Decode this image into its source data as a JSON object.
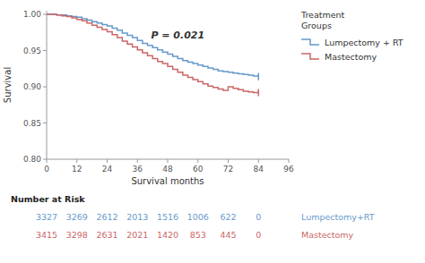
{
  "chart_data": {
    "type": "step",
    "xlabel": "Survival months",
    "ylabel": "Survival",
    "xlim": [
      0,
      96
    ],
    "ylim": [
      0.8,
      1.005
    ],
    "xticks": [
      0,
      12,
      24,
      36,
      48,
      60,
      72,
      84,
      96
    ],
    "yticks": [
      {
        "value": 0.8,
        "label": "0.80"
      },
      {
        "value": 0.85,
        "label": "0.85"
      },
      {
        "value": 0.9,
        "label": "0.90"
      },
      {
        "value": 0.95,
        "label": "0.95"
      },
      {
        "value": 1.0,
        "label": "1.00"
      }
    ],
    "annotations": [
      {
        "text": "P = 0.021",
        "x": 52,
        "y": 0.972
      }
    ],
    "legend": "right",
    "legend_title": "Treatment\nGroups",
    "series": [
      {
        "name": "Lumpectomy + RT",
        "color": "#6699cc",
        "x": [
          0,
          2,
          4,
          6,
          8,
          10,
          12,
          14,
          16,
          18,
          20,
          22,
          24,
          26,
          28,
          30,
          32,
          34,
          36,
          38,
          40,
          42,
          44,
          46,
          48,
          50,
          52,
          54,
          56,
          58,
          60,
          62,
          64,
          66,
          68,
          70,
          72,
          74,
          76,
          78,
          80,
          82,
          84
        ],
        "values": [
          1.0,
          1.0,
          0.999,
          0.999,
          0.998,
          0.997,
          0.996,
          0.994,
          0.992,
          0.99,
          0.988,
          0.986,
          0.984,
          0.981,
          0.978,
          0.974,
          0.971,
          0.968,
          0.964,
          0.96,
          0.957,
          0.954,
          0.951,
          0.948,
          0.945,
          0.942,
          0.939,
          0.936,
          0.934,
          0.932,
          0.93,
          0.928,
          0.926,
          0.924,
          0.922,
          0.921,
          0.92,
          0.919,
          0.918,
          0.917,
          0.916,
          0.915,
          0.914
        ]
      },
      {
        "name": "Mastectomy",
        "color": "#cc6666",
        "x": [
          0,
          2,
          4,
          6,
          8,
          10,
          12,
          14,
          16,
          18,
          20,
          22,
          24,
          26,
          28,
          30,
          32,
          34,
          36,
          38,
          40,
          42,
          44,
          46,
          48,
          50,
          52,
          54,
          56,
          58,
          60,
          62,
          64,
          66,
          68,
          70,
          72,
          74,
          76,
          78,
          80,
          82,
          84
        ],
        "values": [
          1.0,
          1.0,
          0.999,
          0.998,
          0.997,
          0.995,
          0.993,
          0.991,
          0.988,
          0.985,
          0.982,
          0.979,
          0.976,
          0.972,
          0.968,
          0.963,
          0.959,
          0.955,
          0.951,
          0.947,
          0.943,
          0.939,
          0.935,
          0.932,
          0.928,
          0.924,
          0.92,
          0.916,
          0.913,
          0.91,
          0.907,
          0.904,
          0.901,
          0.899,
          0.897,
          0.895,
          0.9,
          0.898,
          0.896,
          0.894,
          0.893,
          0.892,
          0.892
        ]
      }
    ],
    "number_at_risk": {
      "title": "Number at Risk",
      "x": [
        0,
        12,
        24,
        36,
        48,
        60,
        72,
        84
      ],
      "rows": [
        {
          "label": "Lumpectomy+RT",
          "values": [
            3327,
            3269,
            2612,
            2013,
            1516,
            1006,
            622,
            0
          ]
        },
        {
          "label": "Mastectomy",
          "values": [
            3415,
            3298,
            2631,
            2021,
            1420,
            853,
            445,
            0
          ]
        }
      ]
    }
  }
}
